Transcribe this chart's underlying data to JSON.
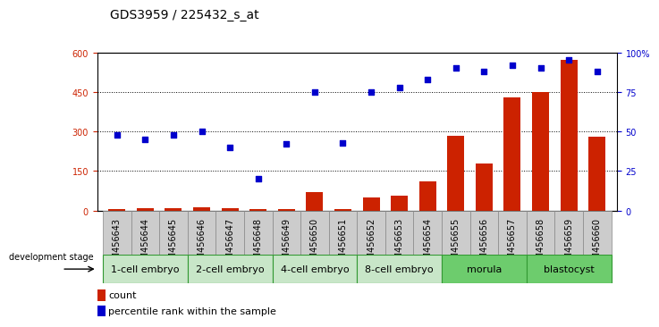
{
  "title": "GDS3959 / 225432_s_at",
  "samples": [
    "GSM456643",
    "GSM456644",
    "GSM456645",
    "GSM456646",
    "GSM456647",
    "GSM456648",
    "GSM456649",
    "GSM456650",
    "GSM456651",
    "GSM456652",
    "GSM456653",
    "GSM456654",
    "GSM456655",
    "GSM456656",
    "GSM456657",
    "GSM456658",
    "GSM456659",
    "GSM456660"
  ],
  "counts": [
    5,
    8,
    10,
    12,
    8,
    5,
    5,
    70,
    5,
    50,
    55,
    110,
    285,
    180,
    430,
    450,
    570,
    280
  ],
  "percentiles": [
    48,
    45,
    48,
    50,
    40,
    20,
    42,
    75,
    43,
    75,
    78,
    83,
    90,
    88,
    92,
    90,
    95,
    88
  ],
  "stages": [
    {
      "label": "1-cell embryo",
      "start": 0,
      "end": 3
    },
    {
      "label": "2-cell embryo",
      "start": 3,
      "end": 6
    },
    {
      "label": "4-cell embryo",
      "start": 6,
      "end": 9
    },
    {
      "label": "8-cell embryo",
      "start": 9,
      "end": 12
    },
    {
      "label": "morula",
      "start": 12,
      "end": 15
    },
    {
      "label": "blastocyst",
      "start": 15,
      "end": 18
    }
  ],
  "stage_colors": [
    "#c8e6c8",
    "#c8e6c8",
    "#c8e6c8",
    "#c8e6c8",
    "#6dcc6d",
    "#6dcc6d"
  ],
  "ylim_left": [
    0,
    600
  ],
  "ylim_right": [
    0,
    100
  ],
  "yticks_left": [
    0,
    150,
    300,
    450,
    600
  ],
  "yticks_right": [
    0,
    25,
    50,
    75,
    100
  ],
  "bar_color": "#cc2200",
  "dot_color": "#0000cc",
  "title_fontsize": 10,
  "tick_fontsize": 7,
  "stage_fontsize": 8,
  "legend_fontsize": 8,
  "sample_strip_color": "#cccccc",
  "stage_border_color": "#339933"
}
